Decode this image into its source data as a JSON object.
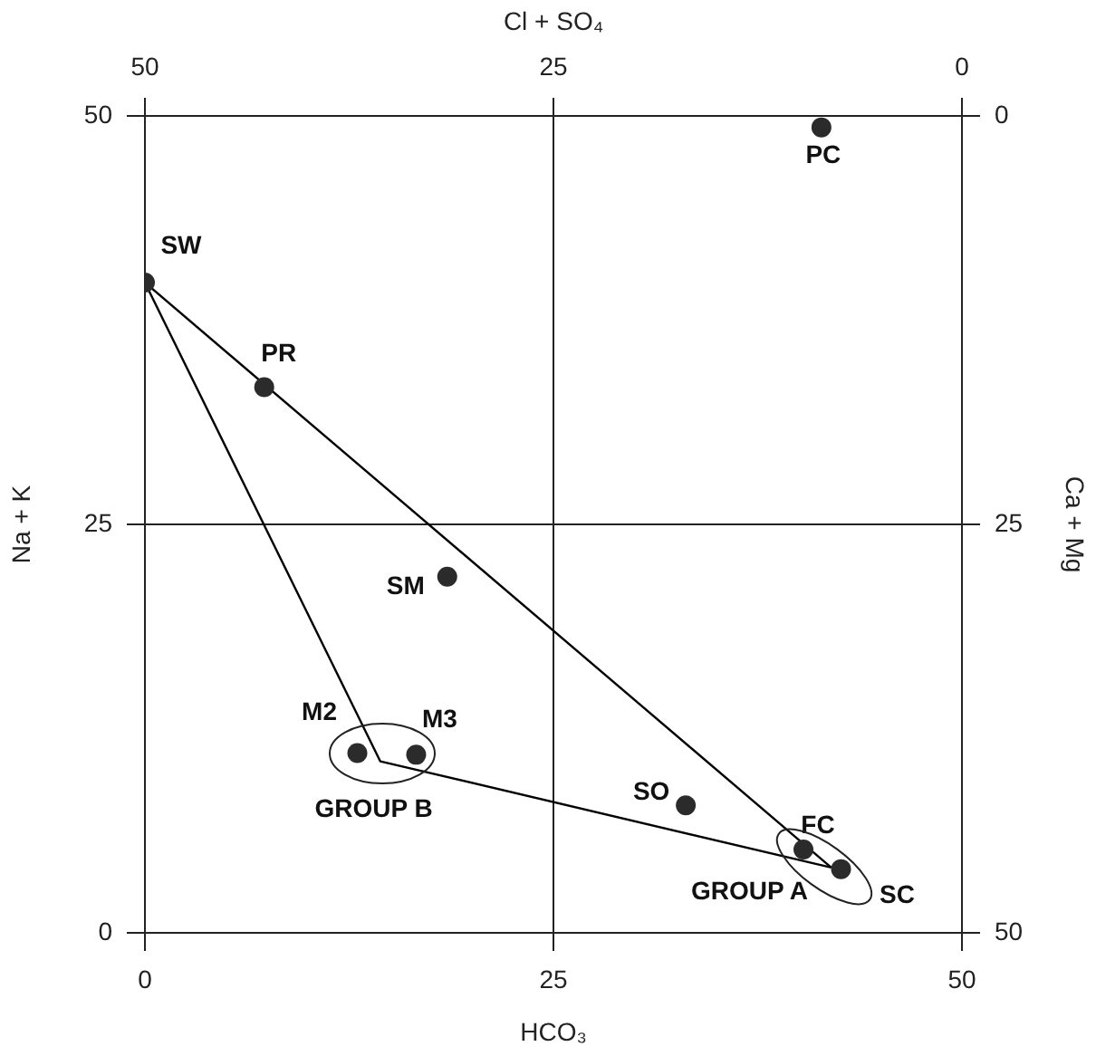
{
  "chart_data": {
    "type": "scatter",
    "xlabel": "HCO₃",
    "ylabel": "Na + K",
    "y2label": "Ca + Mg",
    "x2label": "Cl + SO₄",
    "xlim": [
      0,
      50
    ],
    "xticks": [
      0,
      25,
      50
    ],
    "ylim": [
      0,
      50
    ],
    "yticks": [
      0,
      25,
      50
    ],
    "x2lim": [
      50,
      0
    ],
    "x2ticks": [
      50,
      25,
      0
    ],
    "y2lim": [
      50,
      0
    ],
    "y2ticks": [
      50,
      25,
      0
    ],
    "grid": true,
    "marker": "circle",
    "series": [
      {
        "color": "#2b2b2b",
        "x": [
          0,
          7.3,
          18.5,
          13.0,
          16.6,
          33.1,
          40.3,
          42.6,
          41.4
        ],
        "values": [
          39.8,
          33.4,
          21.8,
          11.0,
          10.9,
          7.8,
          5.1,
          3.9,
          49.3
        ]
      },
      {
        "type": "line",
        "color": "#000000",
        "marker": "none",
        "line_style": "solid",
        "x": [
          0,
          42
        ],
        "values": [
          39.8,
          4.0
        ]
      },
      {
        "type": "line",
        "color": "#000000",
        "marker": "none",
        "line_style": "solid",
        "x": [
          0,
          14.4,
          42
        ],
        "values": [
          39.8,
          10.5,
          4.0
        ]
      }
    ],
    "annotations": [
      {
        "text": "SW",
        "x": 0,
        "y": 39.8
      },
      {
        "text": "PR",
        "x": 7.3,
        "y": 33.4
      },
      {
        "text": "SM",
        "x": 18.5,
        "y": 21.8
      },
      {
        "text": "M2",
        "x": 13.0,
        "y": 11.0
      },
      {
        "text": "M3",
        "x": 16.6,
        "y": 10.9
      },
      {
        "text": "SO",
        "x": 33.1,
        "y": 7.8
      },
      {
        "text": "FC",
        "x": 40.3,
        "y": 5.1
      },
      {
        "text": "SC",
        "x": 42.6,
        "y": 3.9
      },
      {
        "text": "PC",
        "x": 41.4,
        "y": 49.3
      },
      "GROUP B",
      "GROUP A"
    ]
  }
}
